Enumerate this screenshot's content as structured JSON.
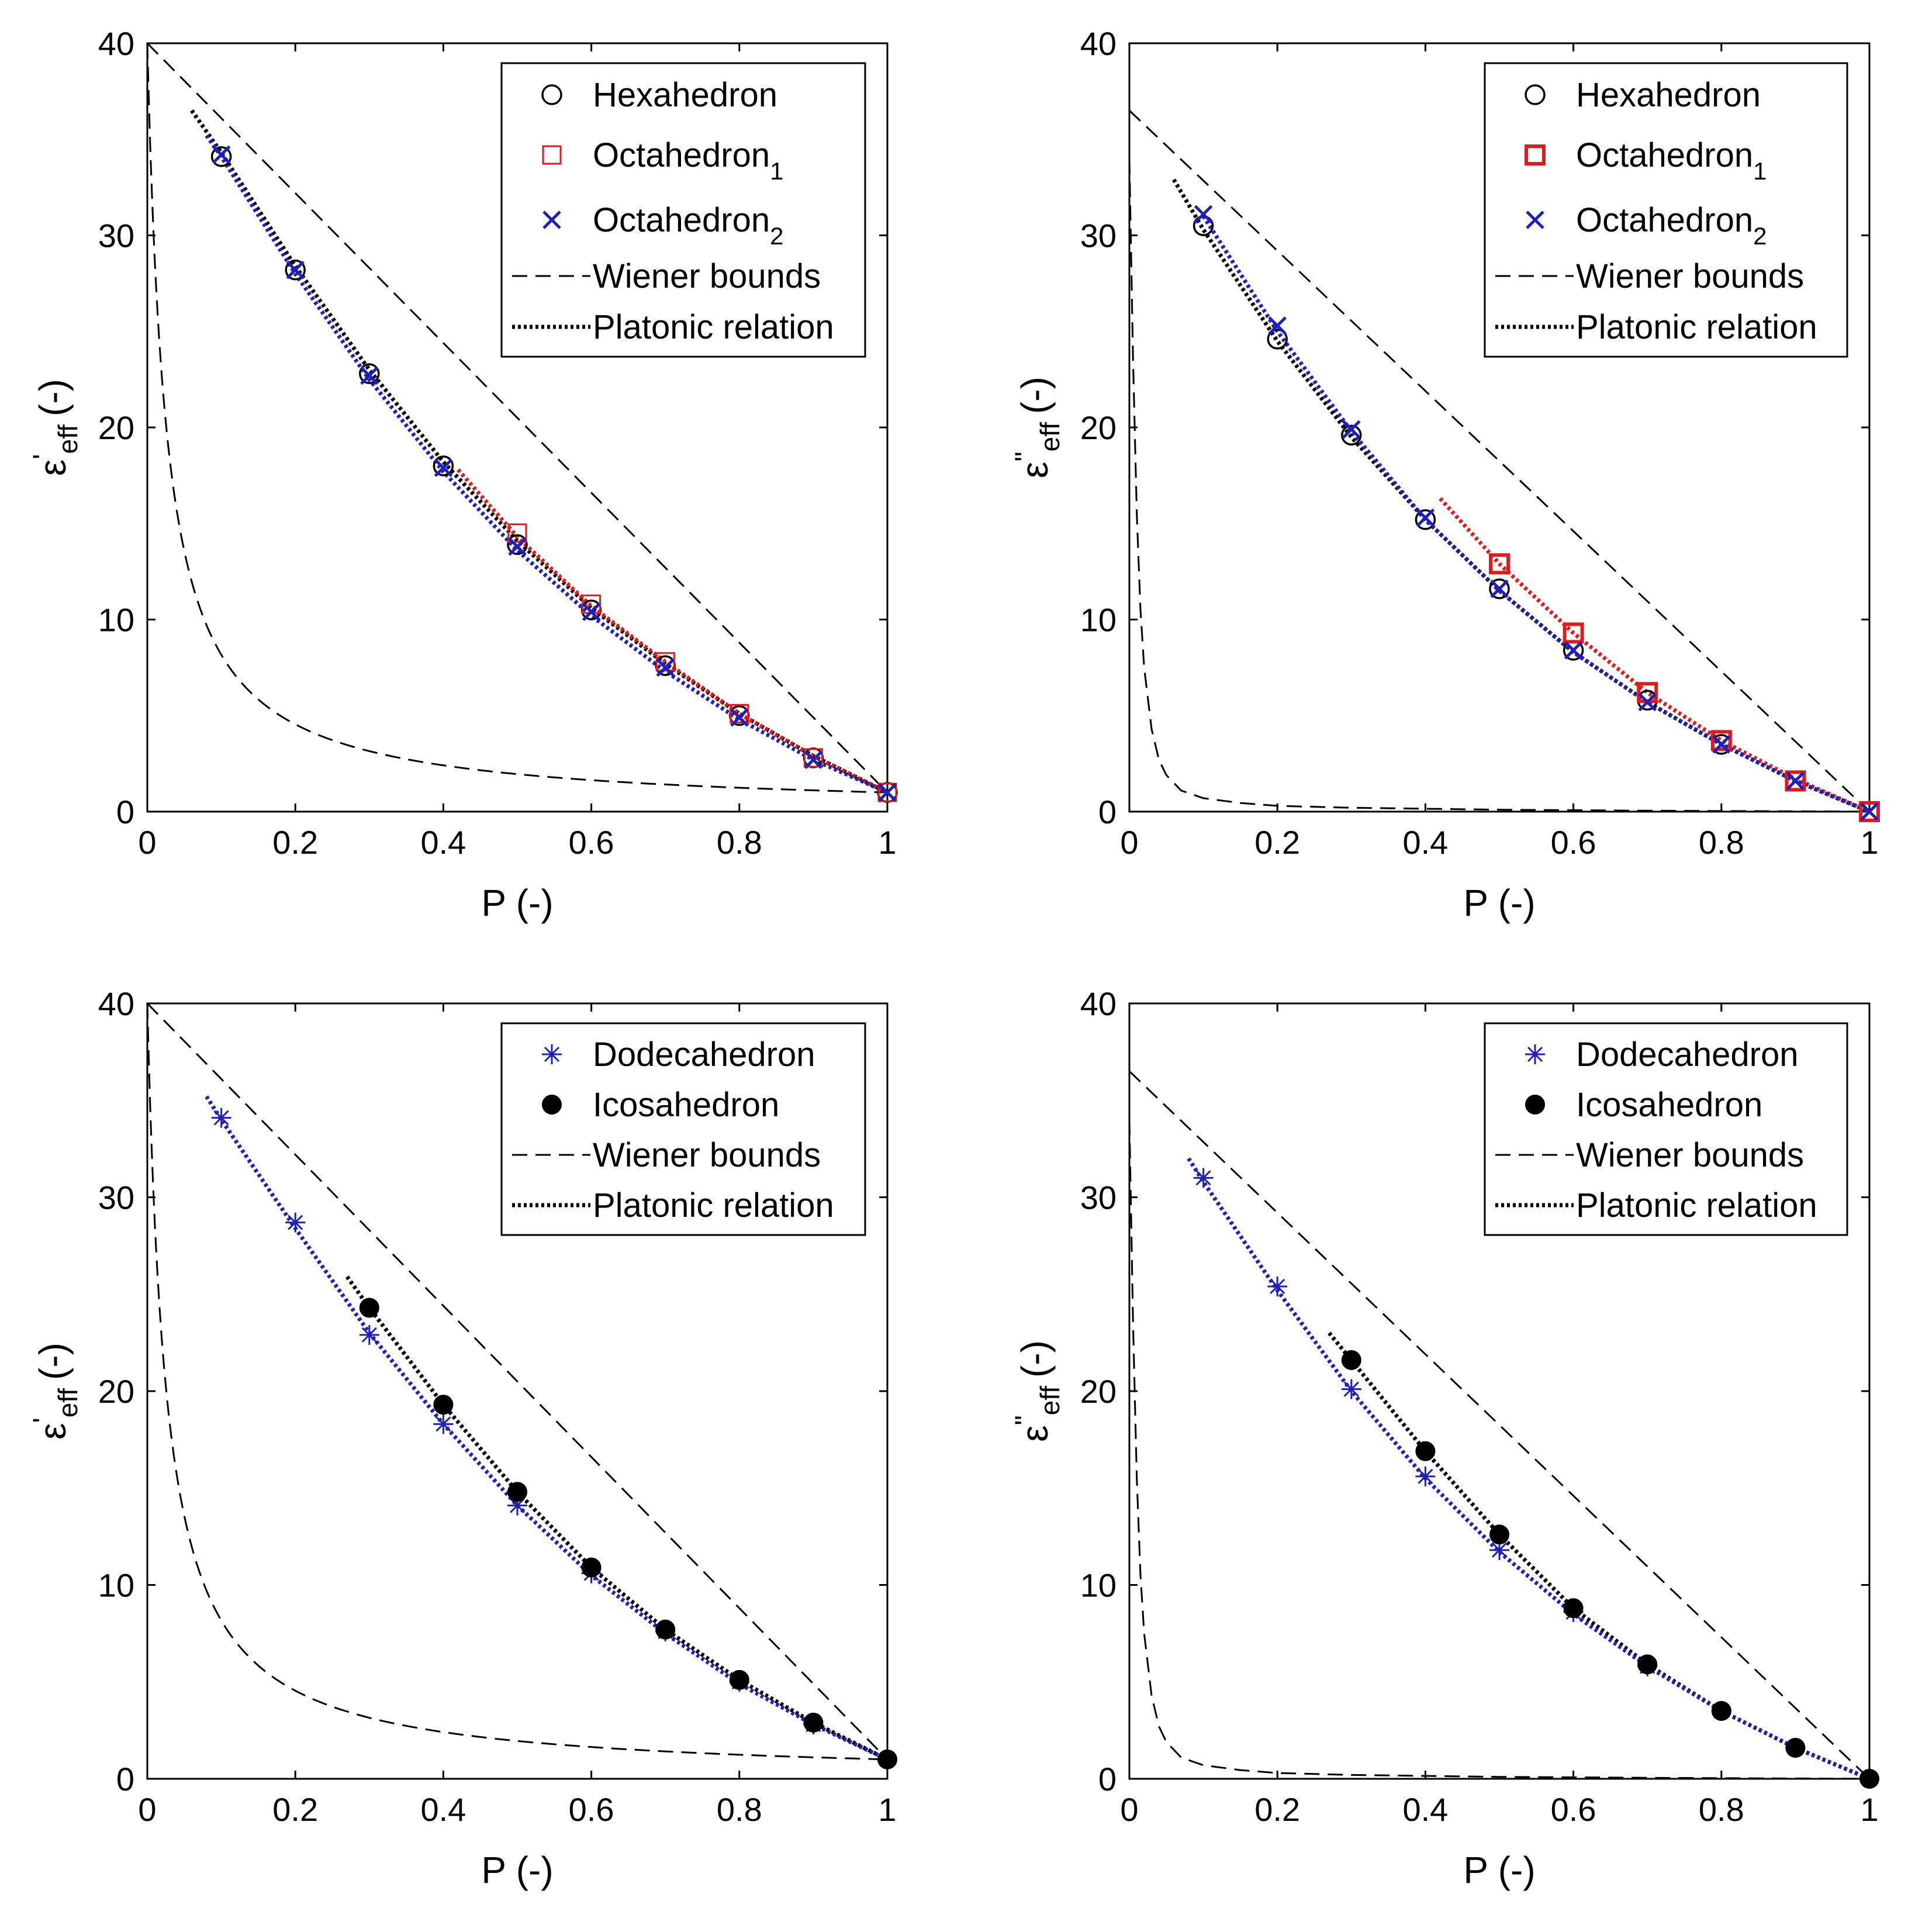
{
  "chart_data": [
    {
      "type": "scatter",
      "panel": "top-left",
      "xlabel": "P (-)",
      "ylabel": {
        "base": "ε",
        "prime": "'",
        "sub": "eff",
        "unit": "(-)"
      },
      "xlim": [
        0,
        1
      ],
      "ylim": [
        0,
        40
      ],
      "xticks": [
        "0",
        "0.2",
        "0.4",
        "0.6",
        "0.8",
        "1"
      ],
      "yticks": [
        "0",
        "10",
        "20",
        "30",
        "40"
      ],
      "legend_position": "top-right",
      "legend": [
        {
          "label": "Hexahedron",
          "marker": "circle",
          "color": "#000000"
        },
        {
          "label": "Octahedron",
          "sub": "1",
          "marker": "square",
          "color": "#e31a1c"
        },
        {
          "label": "Octahedron",
          "sub": "2",
          "marker": "x",
          "color": "#1f1fbf"
        },
        {
          "label": "Wiener bounds",
          "line": "dashed",
          "color": "#000000"
        },
        {
          "label": "Platonic relation",
          "line": "dotted",
          "color": "#000000"
        }
      ],
      "series": [
        {
          "name": "Hexahedron",
          "marker": "circle",
          "color": "#000000",
          "x": [
            0.1,
            0.2,
            0.3,
            0.4,
            0.5,
            0.6,
            0.7,
            0.8,
            0.9,
            1.0
          ],
          "y": [
            34.1,
            28.2,
            22.8,
            18.0,
            13.9,
            10.5,
            7.6,
            5.0,
            2.8,
            1.0
          ]
        },
        {
          "name": "Octahedron_1",
          "marker": "square",
          "color": "#e31a1c",
          "x": [
            0.5,
            0.6,
            0.7,
            0.8,
            0.9,
            1.0
          ],
          "y": [
            14.5,
            10.8,
            7.8,
            5.1,
            2.8,
            1.0
          ]
        },
        {
          "name": "Octahedron_2",
          "marker": "x",
          "color": "#1f1fbf",
          "x": [
            0.1,
            0.2,
            0.3,
            0.4,
            0.5,
            0.6,
            0.7,
            0.8,
            0.9,
            1.0
          ],
          "y": [
            34.2,
            28.2,
            22.7,
            17.9,
            13.8,
            10.4,
            7.5,
            4.9,
            2.7,
            1.0
          ]
        }
      ],
      "curves": [
        {
          "name": "Wiener upper",
          "style": "dashed",
          "color": "#000000",
          "x": [
            0,
            1
          ],
          "y": [
            40,
            1
          ]
        },
        {
          "name": "Wiener lower",
          "style": "dashed",
          "color": "#000000",
          "fn": "harmonic",
          "eps1": 1,
          "eps2": 40
        },
        {
          "name": "Platonic relation",
          "style": "dotted",
          "color": "#000000",
          "x": [
            0.06,
            0.1,
            0.2,
            0.3,
            0.4,
            0.5,
            0.6,
            0.7,
            0.8,
            0.9,
            1.0
          ],
          "y": [
            36.5,
            34.3,
            28.4,
            23.0,
            18.2,
            14.1,
            10.6,
            7.7,
            5.1,
            2.9,
            1.0
          ]
        },
        {
          "name": "Platonic relation (Octahedron_1)",
          "style": "dotted",
          "color": "#e31a1c",
          "x": [
            0.42,
            0.5,
            0.6,
            0.7,
            0.8,
            0.9,
            1.0
          ],
          "y": [
            17.8,
            14.3,
            10.7,
            7.8,
            5.1,
            2.9,
            1.0
          ]
        },
        {
          "name": "Platonic relation (Octahedron_2)",
          "style": "dotted",
          "color": "#1f1fbf",
          "x": [
            0.08,
            0.1,
            0.2,
            0.3,
            0.4,
            0.5,
            0.6,
            0.7,
            0.8,
            0.9,
            1.0
          ],
          "y": [
            35.2,
            34.1,
            28.0,
            22.5,
            17.7,
            13.6,
            10.2,
            7.3,
            4.8,
            2.7,
            1.0
          ]
        }
      ]
    },
    {
      "type": "scatter",
      "panel": "top-right",
      "xlabel": "P (-)",
      "ylabel": {
        "base": "ε",
        "prime": "\"",
        "sub": "eff",
        "unit": "(-)"
      },
      "xlim": [
        0,
        1
      ],
      "ylim": [
        0,
        40
      ],
      "xticks": [
        "0",
        "0.2",
        "0.4",
        "0.6",
        "0.8",
        "1"
      ],
      "yticks": [
        "0",
        "10",
        "20",
        "30",
        "40"
      ],
      "legend_position": "top-right",
      "legend": [
        {
          "label": "Hexahedron",
          "marker": "circle",
          "color": "#000000"
        },
        {
          "label": "Octahedron",
          "sub": "1",
          "marker": "square-bold",
          "color": "#e31a1c"
        },
        {
          "label": "Octahedron",
          "sub": "2",
          "marker": "x",
          "color": "#1f1fbf"
        },
        {
          "label": "Wiener bounds",
          "line": "dashed",
          "color": "#000000"
        },
        {
          "label": "Platonic relation",
          "line": "dotted",
          "color": "#000000"
        }
      ],
      "series": [
        {
          "name": "Hexahedron",
          "marker": "circle",
          "color": "#000000",
          "x": [
            0.1,
            0.2,
            0.3,
            0.4,
            0.5,
            0.6,
            0.7,
            0.8,
            0.9,
            1.0
          ],
          "y": [
            30.5,
            24.6,
            19.6,
            15.2,
            11.6,
            8.4,
            5.8,
            3.5,
            1.6,
            0.0
          ]
        },
        {
          "name": "Octahedron_1",
          "marker": "square-bold",
          "color": "#e31a1c",
          "x": [
            0.5,
            0.6,
            0.7,
            0.8,
            0.9,
            1.0
          ],
          "y": [
            12.9,
            9.3,
            6.2,
            3.7,
            1.6,
            0.0
          ]
        },
        {
          "name": "Octahedron_2",
          "marker": "x",
          "color": "#1f1fbf",
          "x": [
            0.1,
            0.2,
            0.3,
            0.4,
            0.5,
            0.6,
            0.7,
            0.8,
            0.9,
            1.0
          ],
          "y": [
            31.1,
            25.3,
            19.9,
            15.3,
            11.6,
            8.4,
            5.7,
            3.5,
            1.6,
            0.0
          ]
        }
      ],
      "curves": [
        {
          "name": "Wiener upper",
          "style": "dashed",
          "color": "#000000",
          "x": [
            0,
            1
          ],
          "y": [
            36.5,
            0
          ]
        },
        {
          "name": "Wiener lower",
          "style": "dashed",
          "color": "#000000",
          "x": [
            0.0,
            0.005,
            0.01,
            0.015,
            0.02,
            0.03,
            0.04,
            0.05,
            0.07,
            0.1,
            0.15,
            0.2,
            0.3,
            0.5,
            0.7,
            1.0
          ],
          "y": [
            34.0,
            23.5,
            15.5,
            10.5,
            7.5,
            4.3,
            2.7,
            1.9,
            1.1,
            0.7,
            0.45,
            0.3,
            0.2,
            0.1,
            0.05,
            0.0
          ]
        },
        {
          "name": "Platonic relation",
          "style": "dotted",
          "color": "#000000",
          "x": [
            0.06,
            0.1,
            0.2,
            0.3,
            0.4,
            0.5,
            0.6,
            0.7,
            0.8,
            0.9,
            1.0
          ],
          "y": [
            32.9,
            30.3,
            24.5,
            19.5,
            15.2,
            11.5,
            8.3,
            5.7,
            3.5,
            1.6,
            0.0
          ]
        },
        {
          "name": "Platonic relation (Octahedron_1)",
          "style": "dotted",
          "color": "#e31a1c",
          "x": [
            0.42,
            0.5,
            0.6,
            0.7,
            0.8,
            0.9,
            1.0
          ],
          "y": [
            16.3,
            12.9,
            9.3,
            6.2,
            3.7,
            1.7,
            0.0
          ]
        },
        {
          "name": "Platonic relation (Octahedron_2)",
          "style": "dotted",
          "color": "#1f1fbf",
          "x": [
            0.1,
            0.2,
            0.3,
            0.4,
            0.5,
            0.6,
            0.7,
            0.8,
            0.9,
            1.0
          ],
          "y": [
            31.0,
            25.0,
            19.8,
            15.2,
            11.5,
            8.3,
            5.7,
            3.5,
            1.6,
            0.0
          ]
        }
      ]
    },
    {
      "type": "scatter",
      "panel": "bottom-left",
      "xlabel": "P (-)",
      "ylabel": {
        "base": "ε",
        "prime": "'",
        "sub": "eff",
        "unit": "(-)"
      },
      "xlim": [
        0,
        1
      ],
      "ylim": [
        0,
        40
      ],
      "xticks": [
        "0",
        "0.2",
        "0.4",
        "0.6",
        "0.8",
        "1"
      ],
      "yticks": [
        "0",
        "10",
        "20",
        "30",
        "40"
      ],
      "legend_position": "top-right",
      "legend": [
        {
          "label": "Dodecahedron",
          "marker": "star",
          "color": "#1f1fbf"
        },
        {
          "label": "Icosahedron",
          "marker": "dot",
          "color": "#000000"
        },
        {
          "label": "Wiener bounds",
          "line": "dashed",
          "color": "#000000"
        },
        {
          "label": "Platonic relation",
          "line": "dotted",
          "color": "#000000"
        }
      ],
      "series": [
        {
          "name": "Dodecahedron",
          "marker": "star",
          "color": "#1f1fbf",
          "x": [
            0.1,
            0.2,
            0.3,
            0.4,
            0.5,
            0.6,
            0.7,
            0.8,
            0.9,
            1.0
          ],
          "y": [
            34.1,
            28.7,
            22.9,
            18.3,
            14.1,
            10.6,
            7.6,
            5.0,
            2.8,
            1.0
          ]
        },
        {
          "name": "Icosahedron",
          "marker": "dot",
          "color": "#000000",
          "x": [
            0.3,
            0.4,
            0.5,
            0.6,
            0.7,
            0.8,
            0.9,
            1.0
          ],
          "y": [
            24.3,
            19.3,
            14.8,
            10.9,
            7.7,
            5.1,
            2.9,
            1.0
          ]
        }
      ],
      "curves": [
        {
          "name": "Wiener upper",
          "style": "dashed",
          "color": "#000000",
          "x": [
            0,
            1
          ],
          "y": [
            40,
            1
          ]
        },
        {
          "name": "Wiener lower",
          "style": "dashed",
          "color": "#000000",
          "fn": "harmonic",
          "eps1": 1,
          "eps2": 40
        },
        {
          "name": "Platonic relation (Icosahedron)",
          "style": "dotted",
          "color": "#000000",
          "x": [
            0.27,
            0.3,
            0.4,
            0.5,
            0.6,
            0.7,
            0.8,
            0.9,
            1.0
          ],
          "y": [
            25.9,
            24.3,
            19.3,
            14.8,
            10.9,
            7.7,
            5.1,
            2.9,
            1.0
          ]
        },
        {
          "name": "Platonic relation (Dodecahedron)",
          "style": "dotted",
          "color": "#1f1fbf",
          "x": [
            0.08,
            0.1,
            0.2,
            0.3,
            0.4,
            0.5,
            0.6,
            0.7,
            0.8,
            0.9,
            1.0
          ],
          "y": [
            35.2,
            34.0,
            28.4,
            23.0,
            18.3,
            14.1,
            10.5,
            7.5,
            4.9,
            2.8,
            1.0
          ]
        }
      ]
    },
    {
      "type": "scatter",
      "panel": "bottom-right",
      "xlabel": "P (-)",
      "ylabel": {
        "base": "ε",
        "prime": "\"",
        "sub": "eff",
        "unit": "(-)"
      },
      "xlim": [
        0,
        1
      ],
      "ylim": [
        0,
        40
      ],
      "xticks": [
        "0",
        "0.2",
        "0.4",
        "0.6",
        "0.8",
        "1"
      ],
      "yticks": [
        "0",
        "10",
        "20",
        "30",
        "40"
      ],
      "legend_position": "top-right",
      "legend": [
        {
          "label": "Dodecahedron",
          "marker": "star",
          "color": "#1f1fbf"
        },
        {
          "label": "Icosahedron",
          "marker": "dot",
          "color": "#000000"
        },
        {
          "label": "Wiener bounds",
          "line": "dashed",
          "color": "#000000"
        },
        {
          "label": "Platonic relation",
          "line": "dotted",
          "color": "#000000"
        }
      ],
      "series": [
        {
          "name": "Dodecahedron",
          "marker": "star",
          "color": "#1f1fbf",
          "x": [
            0.1,
            0.2,
            0.3,
            0.4,
            0.5,
            0.6,
            0.7,
            0.8,
            0.9,
            1.0
          ],
          "y": [
            31.0,
            25.4,
            20.1,
            15.6,
            11.8,
            8.6,
            5.8,
            3.5,
            1.6,
            0.0
          ]
        },
        {
          "name": "Icosahedron",
          "marker": "dot",
          "color": "#000000",
          "x": [
            0.3,
            0.4,
            0.5,
            0.6,
            0.7,
            0.8,
            0.9,
            1.0
          ],
          "y": [
            21.6,
            16.9,
            12.6,
            8.8,
            5.9,
            3.5,
            1.6,
            0.0
          ]
        }
      ],
      "curves": [
        {
          "name": "Wiener upper",
          "style": "dashed",
          "color": "#000000",
          "x": [
            0,
            1
          ],
          "y": [
            36.5,
            0
          ]
        },
        {
          "name": "Wiener lower",
          "style": "dashed",
          "color": "#000000",
          "x": [
            0.0,
            0.005,
            0.01,
            0.015,
            0.02,
            0.03,
            0.04,
            0.05,
            0.07,
            0.1,
            0.15,
            0.2,
            0.3,
            0.5,
            0.7,
            1.0
          ],
          "y": [
            34.0,
            23.5,
            15.5,
            10.5,
            7.5,
            4.3,
            2.7,
            1.9,
            1.1,
            0.7,
            0.45,
            0.3,
            0.2,
            0.1,
            0.05,
            0.0
          ]
        },
        {
          "name": "Platonic relation (Icosahedron)",
          "style": "dotted",
          "color": "#000000",
          "x": [
            0.27,
            0.3,
            0.4,
            0.5,
            0.6,
            0.7,
            0.8,
            0.9,
            1.0
          ],
          "y": [
            23.0,
            21.6,
            16.9,
            12.6,
            8.8,
            5.9,
            3.5,
            1.6,
            0.0
          ]
        },
        {
          "name": "Platonic relation (Dodecahedron)",
          "style": "dotted",
          "color": "#1f1fbf",
          "x": [
            0.08,
            0.1,
            0.2,
            0.3,
            0.4,
            0.5,
            0.6,
            0.7,
            0.8,
            0.9,
            1.0
          ],
          "y": [
            32.0,
            30.8,
            25.2,
            20.0,
            15.5,
            11.7,
            8.5,
            5.8,
            3.5,
            1.6,
            0.0
          ]
        }
      ]
    }
  ]
}
